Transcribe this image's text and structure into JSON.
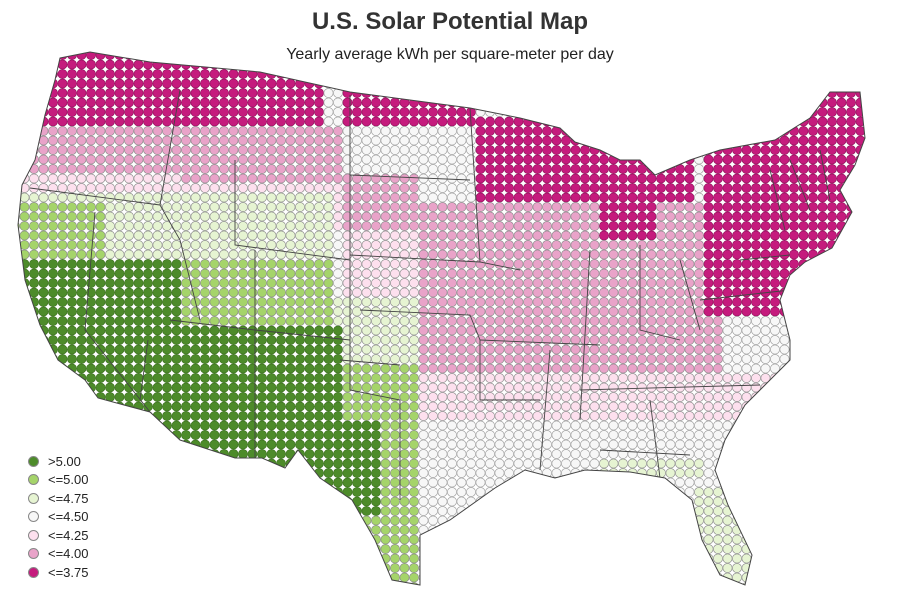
{
  "title": "U.S. Solar Potential Map",
  "subtitle": "Yearly average kWh per square-meter per day",
  "legend": [
    {
      "label": ">5.00",
      "color": "#4d8b2a"
    },
    {
      "label": "<=5.00",
      "color": "#a5d46a"
    },
    {
      "label": "<=4.75",
      "color": "#e6f4d2"
    },
    {
      "label": "<=4.50",
      "color": "#f7f7f7"
    },
    {
      "label": "<=4.25",
      "color": "#fde0ee"
    },
    {
      "label": "<=4.00",
      "color": "#e9a3c9"
    },
    {
      "label": "<=3.75",
      "color": "#c51b7d"
    }
  ],
  "map": {
    "region": "contiguous United States",
    "marker": "circle",
    "state_borders": true
  }
}
